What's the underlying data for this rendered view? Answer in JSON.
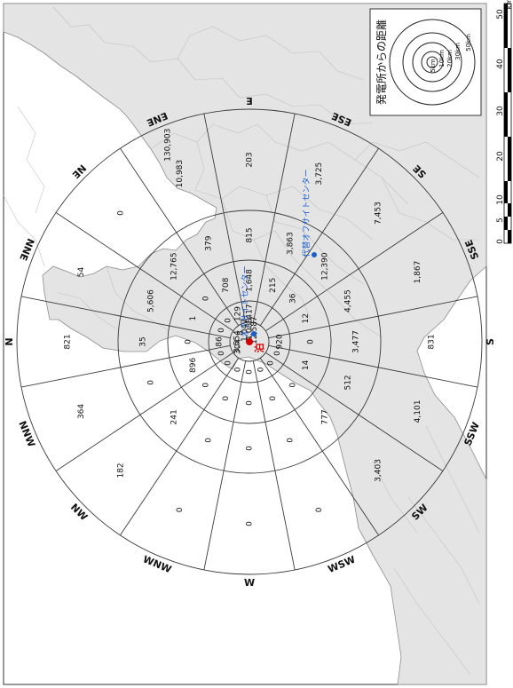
{
  "map": {
    "legend": {
      "title": "発電所からの距離",
      "rings": [
        "5km",
        "10km",
        "20km",
        "30km",
        "50km"
      ]
    },
    "scale": {
      "ticks": [
        "0",
        "5",
        "10",
        "20",
        "30",
        "40",
        "50"
      ],
      "unit": "km"
    },
    "directions": [
      "N",
      "NNE",
      "NE",
      "ENE",
      "E",
      "ESE",
      "SE",
      "SSE",
      "S",
      "SSW",
      "SW",
      "WSW",
      "W",
      "WNW",
      "NW",
      "NNW"
    ],
    "population_by_band": [
      {
        "band": "0-5km",
        "values": [
          "3,554",
          "",
          "8",
          "1,047",
          "4,088",
          "12,587",
          "",
          "",
          "",
          "",
          "",
          "",
          "",
          "",
          "",
          "304"
        ]
      },
      {
        "band": "5-10km",
        "values": [
          "86",
          "0",
          "0",
          "129",
          "417",
          "",
          "",
          "",
          "920",
          "0",
          "0",
          "0",
          "0",
          "0",
          "0",
          "0"
        ]
      },
      {
        "band": "10-20km",
        "values": [
          "0",
          "1",
          "0",
          "708",
          "1,648",
          "215",
          "36",
          "12",
          "0",
          "14",
          "0",
          "0",
          "0",
          "0",
          "0",
          "896"
        ]
      },
      {
        "band": "20-30km",
        "values": [
          "35",
          "5,606",
          "12,765",
          "379",
          "815",
          "3,863",
          "12,390",
          "4,455",
          "3,477",
          "512",
          "777",
          "0",
          "0",
          "0",
          "241",
          "0"
        ]
      },
      {
        "band": "30-50km",
        "values": [
          "821",
          "54",
          "0",
          "10,983",
          "203",
          "3,725",
          "7,453",
          "1,867",
          "831",
          "4,101",
          "3,403",
          "0",
          "0",
          "0",
          "182",
          "364"
        ]
      },
      {
        "band": "outer-ENE",
        "values": [
          "130,903"
        ]
      }
    ],
    "sites": {
      "plant": "泊",
      "offsite_center": "オフサイトセンター",
      "alt_offsite_center": "代替オフサイトセンター"
    },
    "colors": {
      "plant": "#d40000",
      "offsite": "#1a5fd0",
      "land": "#e4e4e4",
      "lines": "#3a3a3a"
    }
  }
}
